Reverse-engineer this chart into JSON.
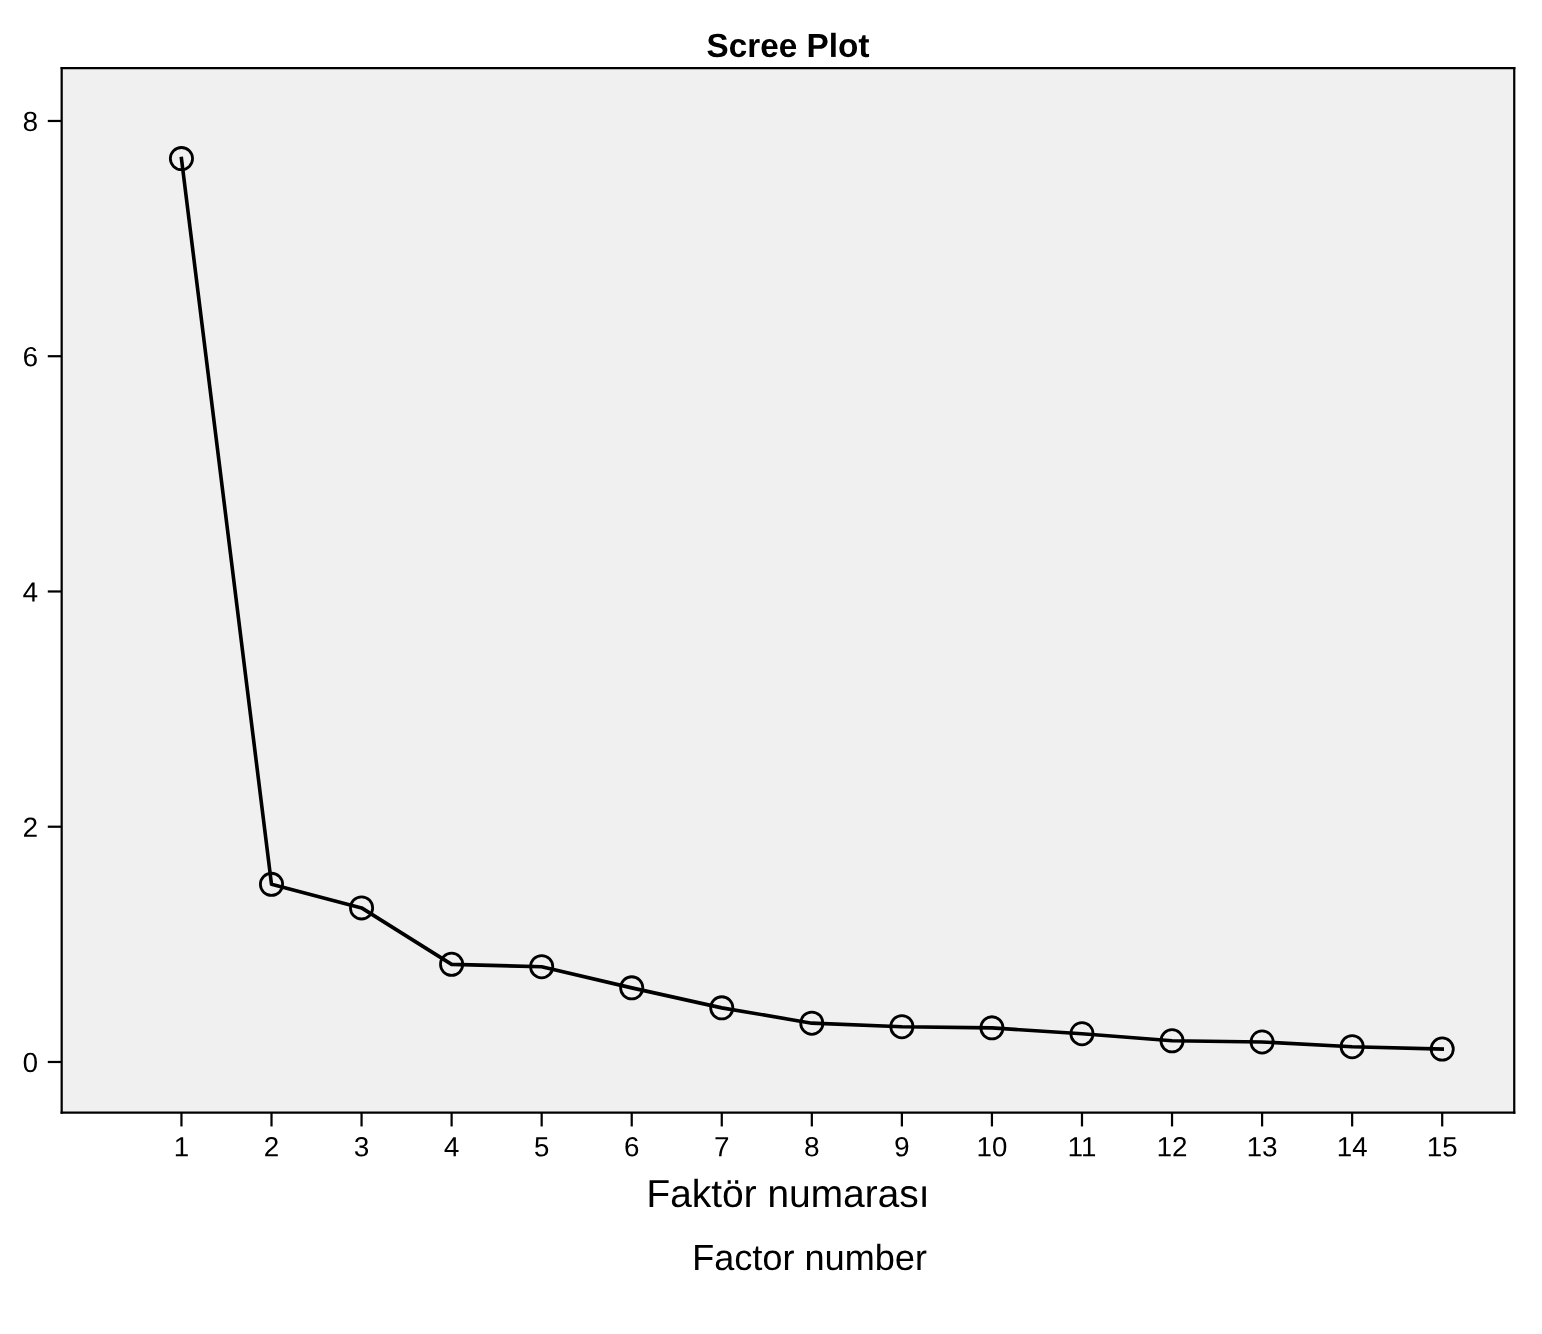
{
  "chart_data": {
    "type": "line",
    "title": "Scree Plot",
    "xlabel": "Faktör numarası",
    "annotations": [
      "Factor number"
    ],
    "x": [
      1,
      2,
      3,
      4,
      5,
      6,
      7,
      8,
      9,
      10,
      11,
      12,
      13,
      14,
      15
    ],
    "series": [
      {
        "color": "#000000",
        "values": [
          7.68,
          1.51,
          1.31,
          0.83,
          0.81,
          0.63,
          0.46,
          0.33,
          0.3,
          0.29,
          0.24,
          0.18,
          0.17,
          0.13,
          0.11
        ]
      }
    ],
    "xlim": [
      -0.33,
      15.8
    ],
    "xticks": [
      1,
      2,
      3,
      4,
      5,
      6,
      7,
      8,
      9,
      10,
      11,
      12,
      13,
      14,
      15
    ],
    "ylim": [
      -0.43,
      8.45
    ],
    "yticks": [
      0,
      2,
      4,
      6,
      8
    ],
    "marker": "circle",
    "line_style": "solid",
    "grid": false,
    "legend": false
  }
}
